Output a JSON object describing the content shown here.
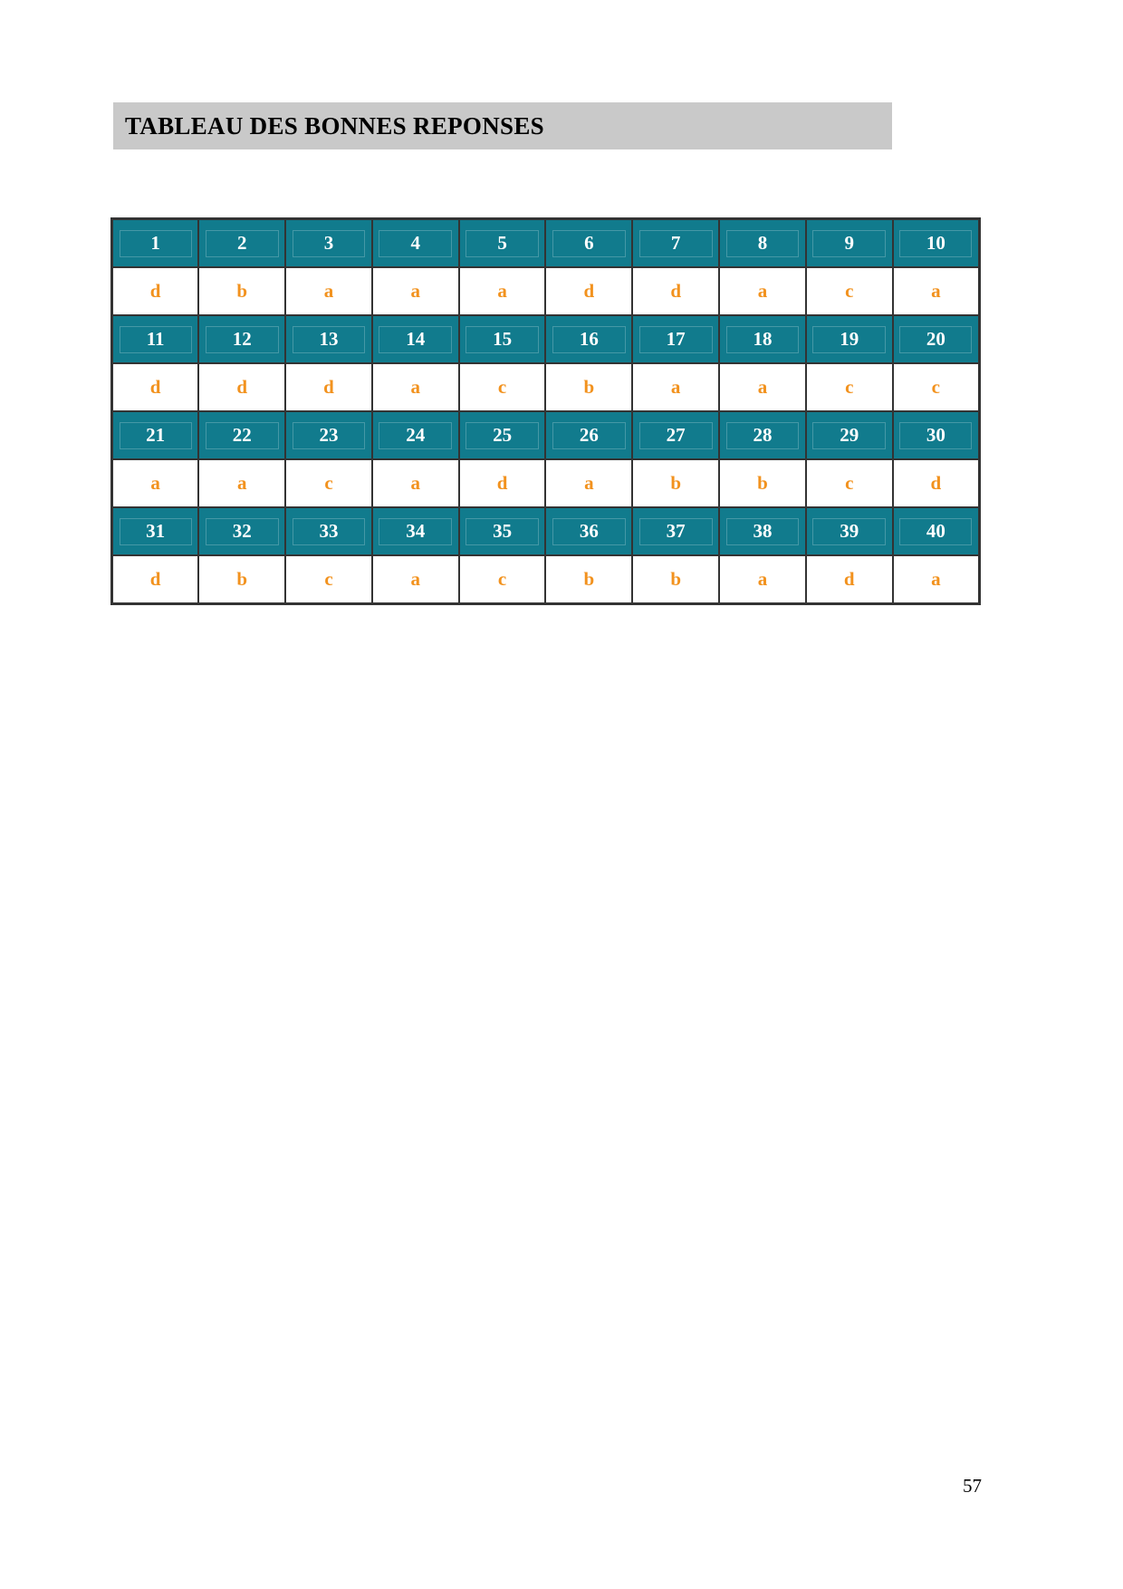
{
  "title": {
    "text": "TABLEAU DES BONNES REPONSES"
  },
  "page": {
    "number": "57"
  },
  "colors": {
    "title_bar_bg": "#c9c9c9",
    "header_cell_bg": "#117b8d",
    "header_text": "#ffffff",
    "answer_text": "#f2921e",
    "table_border": "#333333"
  },
  "table": {
    "rows": [
      {
        "type": "header",
        "cells": [
          "1",
          "2",
          "3",
          "4",
          "5",
          "6",
          "7",
          "8",
          "9",
          "10"
        ]
      },
      {
        "type": "answer",
        "cells": [
          "d",
          "b",
          "a",
          "a",
          "a",
          "d",
          "d",
          "a",
          "c",
          "a"
        ]
      },
      {
        "type": "header",
        "cells": [
          "11",
          "12",
          "13",
          "14",
          "15",
          "16",
          "17",
          "18",
          "19",
          "20"
        ]
      },
      {
        "type": "answer",
        "cells": [
          "d",
          "d",
          "d",
          "a",
          "c",
          "b",
          "a",
          "a",
          "c",
          "c"
        ]
      },
      {
        "type": "header",
        "cells": [
          "21",
          "22",
          "23",
          "24",
          "25",
          "26",
          "27",
          "28",
          "29",
          "30"
        ]
      },
      {
        "type": "answer",
        "cells": [
          "a",
          "a",
          "c",
          "a",
          "d",
          "a",
          "b",
          "b",
          "c",
          "d"
        ]
      },
      {
        "type": "header",
        "cells": [
          "31",
          "32",
          "33",
          "34",
          "35",
          "36",
          "37",
          "38",
          "39",
          "40"
        ]
      },
      {
        "type": "answer",
        "cells": [
          "d",
          "b",
          "c",
          "a",
          "c",
          "b",
          "b",
          "a",
          "d",
          "a"
        ]
      }
    ]
  }
}
